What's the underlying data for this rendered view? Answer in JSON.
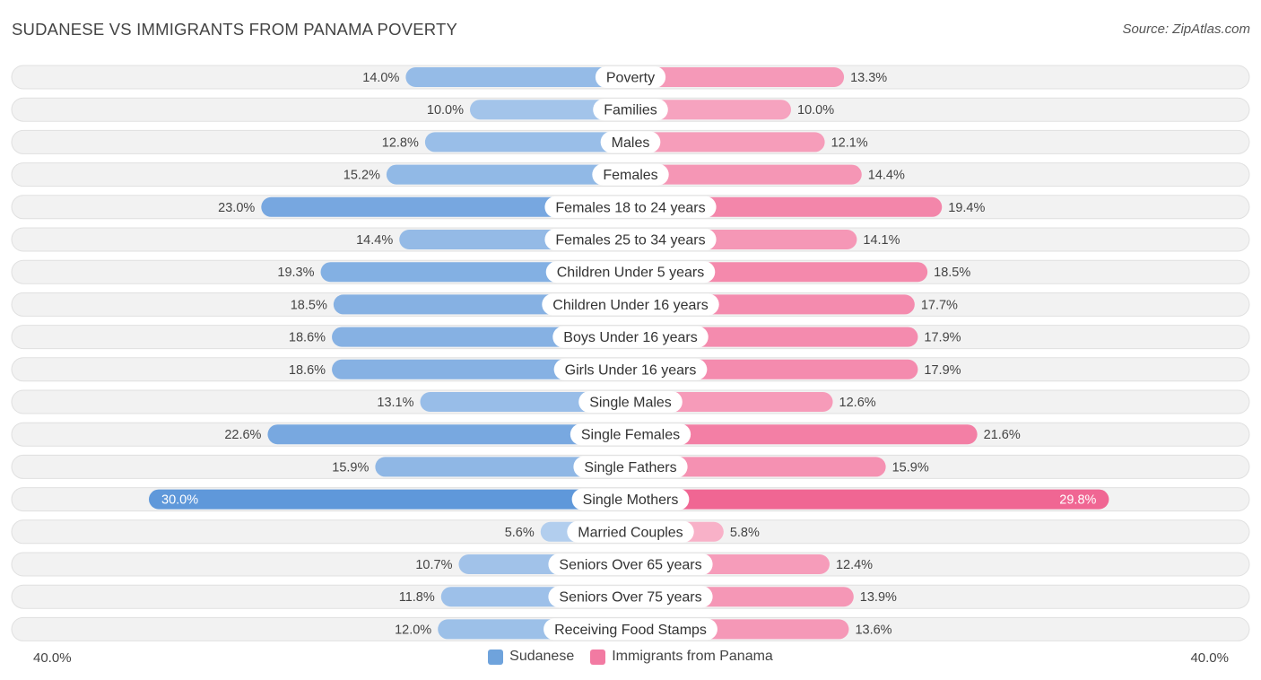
{
  "title": "SUDANESE VS IMMIGRANTS FROM PANAMA POVERTY",
  "source": "Source: ZipAtlas.com",
  "axis": {
    "left_label": "40.0%",
    "right_label": "40.0%"
  },
  "legend": {
    "left": {
      "label": "Sudanese",
      "color": "#6fa3dc"
    },
    "right": {
      "label": "Immigrants from Panama",
      "color": "#f27aa2"
    }
  },
  "chart_data": {
    "type": "bar",
    "orientation": "diverging-horizontal",
    "max": 40.0,
    "categories": [
      "Poverty",
      "Families",
      "Males",
      "Females",
      "Females 18 to 24 years",
      "Females 25 to 34 years",
      "Children Under 5 years",
      "Children Under 16 years",
      "Boys Under 16 years",
      "Girls Under 16 years",
      "Single Males",
      "Single Females",
      "Single Fathers",
      "Single Mothers",
      "Married Couples",
      "Seniors Over 65 years",
      "Seniors Over 75 years",
      "Receiving Food Stamps"
    ],
    "series": [
      {
        "name": "Sudanese",
        "values": [
          14.0,
          10.0,
          12.8,
          15.2,
          23.0,
          14.4,
          19.3,
          18.5,
          18.6,
          18.6,
          13.1,
          22.6,
          15.9,
          30.0,
          5.6,
          10.7,
          11.8,
          12.0
        ],
        "labels": [
          "14.0%",
          "10.0%",
          "12.8%",
          "15.2%",
          "23.0%",
          "14.4%",
          "19.3%",
          "18.5%",
          "18.6%",
          "18.6%",
          "13.1%",
          "22.6%",
          "15.9%",
          "30.0%",
          "5.6%",
          "10.7%",
          "11.8%",
          "12.0%"
        ]
      },
      {
        "name": "Immigrants from Panama",
        "values": [
          13.3,
          10.0,
          12.1,
          14.4,
          19.4,
          14.1,
          18.5,
          17.7,
          17.9,
          17.9,
          12.6,
          21.6,
          15.9,
          29.8,
          5.8,
          12.4,
          13.9,
          13.6
        ],
        "labels": [
          "13.3%",
          "10.0%",
          "12.1%",
          "14.4%",
          "19.4%",
          "14.1%",
          "18.5%",
          "17.7%",
          "17.9%",
          "17.9%",
          "12.6%",
          "21.6%",
          "15.9%",
          "29.8%",
          "5.8%",
          "12.4%",
          "13.9%",
          "13.6%"
        ]
      }
    ]
  }
}
